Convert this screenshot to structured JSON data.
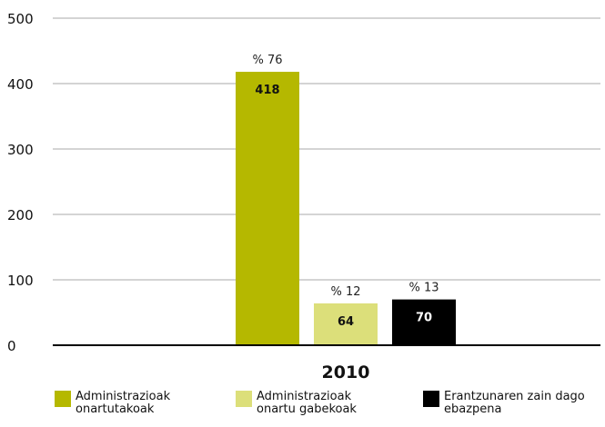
{
  "chart_data": {
    "type": "bar",
    "categories": [
      "2010"
    ],
    "series": [
      {
        "name": "Administrazioak\nonartutakoak",
        "values": [
          418
        ],
        "percent_label": "% 76",
        "color": "#b5b800"
      },
      {
        "name": "Administrazioak\nonartu gabekoak",
        "values": [
          64
        ],
        "percent_label": "% 12",
        "color": "#dcdf7a"
      },
      {
        "name": "Erantzunaren zain dago\nebazpena",
        "values": [
          70
        ],
        "percent_label": "% 13",
        "color": "#000000"
      }
    ],
    "y_ticks": [
      "0",
      "100",
      "200",
      "300",
      "400",
      "500"
    ],
    "ylim": [
      0,
      500
    ],
    "grid": true,
    "legend_position": "bottom"
  }
}
